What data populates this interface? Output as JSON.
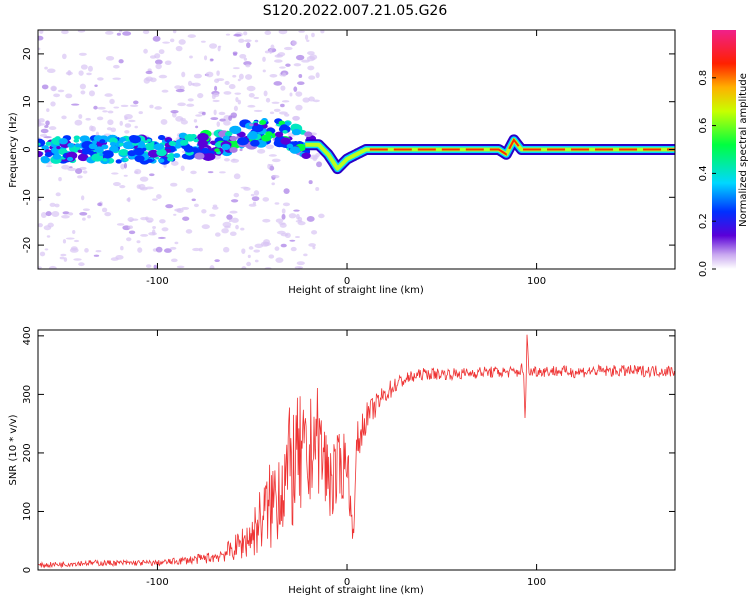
{
  "figure": {
    "title": "S120.2022.007.21.05.G26"
  },
  "chart_data": [
    {
      "type": "heatmap",
      "panel": "top",
      "xlabel": "Height of straight line (km)",
      "ylabel": "Frequency (Hz)",
      "xlim": [
        -163,
        173
      ],
      "ylim": [
        -25,
        25
      ],
      "xticks": [
        -100,
        0,
        100
      ],
      "yticks": [
        -20,
        -10,
        0,
        10,
        20
      ],
      "colorbar": {
        "label": "Normalized spectral amplitude",
        "range": [
          0,
          1
        ],
        "ticks": [
          0.0,
          0.2,
          0.4,
          0.6,
          0.8
        ],
        "colormap": "rainbow (white-violet-blue-cyan-green-yellow-red-magenta)"
      },
      "ridge": {
        "description": "dominant frequency versus height",
        "x": [
          -163,
          -100,
          -70,
          -55,
          -40,
          -30,
          -22,
          -15,
          -10,
          -5,
          0,
          5,
          10,
          15,
          50,
          80,
          84,
          88,
          92,
          173
        ],
        "y": [
          0,
          0,
          1,
          3,
          4,
          3,
          1,
          1,
          -1,
          -4,
          -2,
          -1,
          0,
          0,
          0,
          0,
          -1,
          2,
          0,
          0
        ]
      },
      "grid": false
    },
    {
      "type": "line",
      "panel": "bottom",
      "xlabel": "Height of straight line (km)",
      "ylabel": "SNR (10 * v/v)",
      "xlim": [
        -163,
        173
      ],
      "ylim": [
        0,
        410
      ],
      "xticks": [
        -100,
        0,
        100
      ],
      "yticks": [
        0,
        100,
        200,
        300,
        400
      ],
      "color": "#ee3333",
      "series": [
        {
          "x": [
            -163,
            -150,
            -140,
            -130,
            -120,
            -110,
            -100,
            -90,
            -80,
            -70,
            -60,
            -50,
            -45,
            -40,
            -35,
            -30,
            -25,
            -20,
            -18,
            -15,
            -10,
            -5,
            -2,
            0,
            2,
            3,
            4,
            5,
            8,
            10,
            15,
            20,
            25,
            30,
            40,
            50,
            60,
            70,
            80,
            90,
            93,
            94,
            95,
            96,
            97,
            100,
            110,
            120,
            130,
            140,
            150,
            160,
            173
          ],
          "y": [
            8,
            10,
            12,
            12,
            12,
            12,
            12,
            15,
            18,
            22,
            35,
            60,
            90,
            110,
            150,
            170,
            190,
            170,
            240,
            220,
            160,
            160,
            180,
            200,
            100,
            70,
            90,
            210,
            240,
            260,
            280,
            300,
            315,
            325,
            335,
            335,
            335,
            338,
            338,
            338,
            345,
            250,
            410,
            330,
            340,
            340,
            340,
            338,
            340,
            340,
            340,
            340,
            340
          ],
          "noise": [
            4,
            5,
            5,
            5,
            5,
            5,
            5,
            6,
            8,
            10,
            20,
            40,
            60,
            80,
            100,
            110,
            110,
            100,
            90,
            90,
            80,
            70,
            60,
            50,
            30,
            20,
            20,
            40,
            30,
            25,
            20,
            18,
            15,
            12,
            10,
            10,
            10,
            10,
            10,
            10,
            12,
            0,
            0,
            10,
            12,
            10,
            10,
            10,
            10,
            10,
            10,
            10,
            10
          ]
        }
      ],
      "grid": false
    }
  ]
}
